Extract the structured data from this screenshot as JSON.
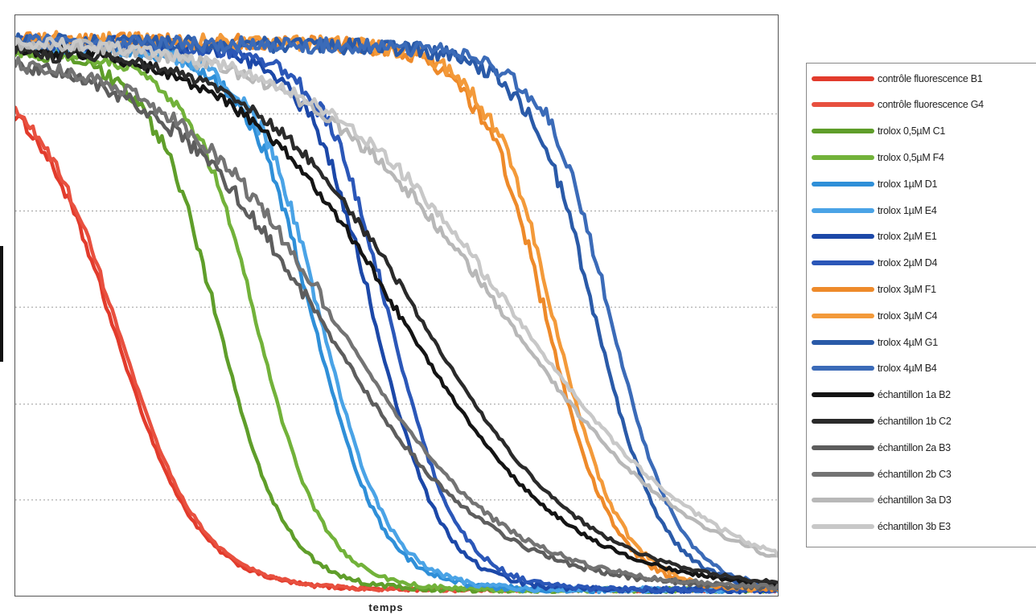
{
  "chart_data": {
    "type": "line",
    "title": "",
    "xlabel": "temps",
    "ylabel": "",
    "grid": "horizontal dotted",
    "legend_position": "right",
    "series": [
      {
        "name": "contrôle fluorescence B1",
        "color": "#e23b2c",
        "top": 0.905,
        "plateau_end": 0.0,
        "t50": 0.13,
        "width": 0.055,
        "noise": 0.004
      },
      {
        "name": "contrôle fluorescence G4",
        "color": "#e8503f",
        "top": 0.905,
        "plateau_end": 0.0,
        "t50": 0.135,
        "width": 0.055,
        "noise": 0.004
      },
      {
        "name": "trolox 0,5µM C1",
        "color": "#5f9e2a",
        "top": 0.94,
        "plateau_end": 0.19,
        "t50": 0.265,
        "width": 0.045,
        "noise": 0.005
      },
      {
        "name": "trolox 0,5µM F4",
        "color": "#72b23a",
        "top": 0.94,
        "plateau_end": 0.24,
        "t50": 0.315,
        "width": 0.045,
        "noise": 0.005
      },
      {
        "name": "trolox 1µM D1",
        "color": "#2f8fd8",
        "top": 0.95,
        "plateau_end": 0.31,
        "t50": 0.39,
        "width": 0.045,
        "noise": 0.006
      },
      {
        "name": "trolox 1µM E4",
        "color": "#4aa3e6",
        "top": 0.95,
        "plateau_end": 0.32,
        "t50": 0.4,
        "width": 0.045,
        "noise": 0.006
      },
      {
        "name": "trolox 2µM E1",
        "color": "#1c48a8",
        "top": 0.955,
        "plateau_end": 0.38,
        "t50": 0.47,
        "width": 0.045,
        "noise": 0.006
      },
      {
        "name": "trolox 2µM D4",
        "color": "#2b57b8",
        "top": 0.955,
        "plateau_end": 0.4,
        "t50": 0.49,
        "width": 0.045,
        "noise": 0.006
      },
      {
        "name": "trolox 3µM F1",
        "color": "#ee8a2a",
        "top": 0.96,
        "plateau_end": 0.62,
        "t50": 0.695,
        "width": 0.045,
        "noise": 0.006
      },
      {
        "name": "trolox 3µM C4",
        "color": "#f39a3a",
        "top": 0.96,
        "plateau_end": 0.63,
        "t50": 0.705,
        "width": 0.045,
        "noise": 0.006
      },
      {
        "name": "trolox 4µM G1",
        "color": "#2a5aa8",
        "top": 0.955,
        "plateau_end": 0.67,
        "t50": 0.76,
        "width": 0.045,
        "noise": 0.006
      },
      {
        "name": "trolox 4µM B4",
        "color": "#3b6bb8",
        "top": 0.955,
        "plateau_end": 0.69,
        "t50": 0.78,
        "width": 0.045,
        "noise": 0.006
      },
      {
        "name": "échantillon 1a B2",
        "color": "#141414",
        "top": 0.955,
        "plateau_end": 0.06,
        "t50": 0.505,
        "width": 0.11,
        "noise": 0.004
      },
      {
        "name": "échantillon 1b C2",
        "color": "#2a2a2a",
        "top": 0.95,
        "plateau_end": 0.06,
        "t50": 0.53,
        "width": 0.11,
        "noise": 0.004
      },
      {
        "name": "échantillon 2a B3",
        "color": "#5d5d5d",
        "top": 0.94,
        "plateau_end": 0.02,
        "t50": 0.4,
        "width": 0.11,
        "noise": 0.006
      },
      {
        "name": "échantillon 2b C3",
        "color": "#737373",
        "top": 0.94,
        "plateau_end": 0.02,
        "t50": 0.42,
        "width": 0.11,
        "noise": 0.006
      },
      {
        "name": "échantillon 3a D3",
        "color": "#b8b8b8",
        "top": 0.96,
        "plateau_end": 0.04,
        "t50": 0.64,
        "width": 0.13,
        "noise": 0.005
      },
      {
        "name": "échantillon 3b E3",
        "color": "#c8c8c8",
        "top": 0.96,
        "plateau_end": 0.04,
        "t50": 0.655,
        "width": 0.13,
        "noise": 0.005
      }
    ]
  }
}
